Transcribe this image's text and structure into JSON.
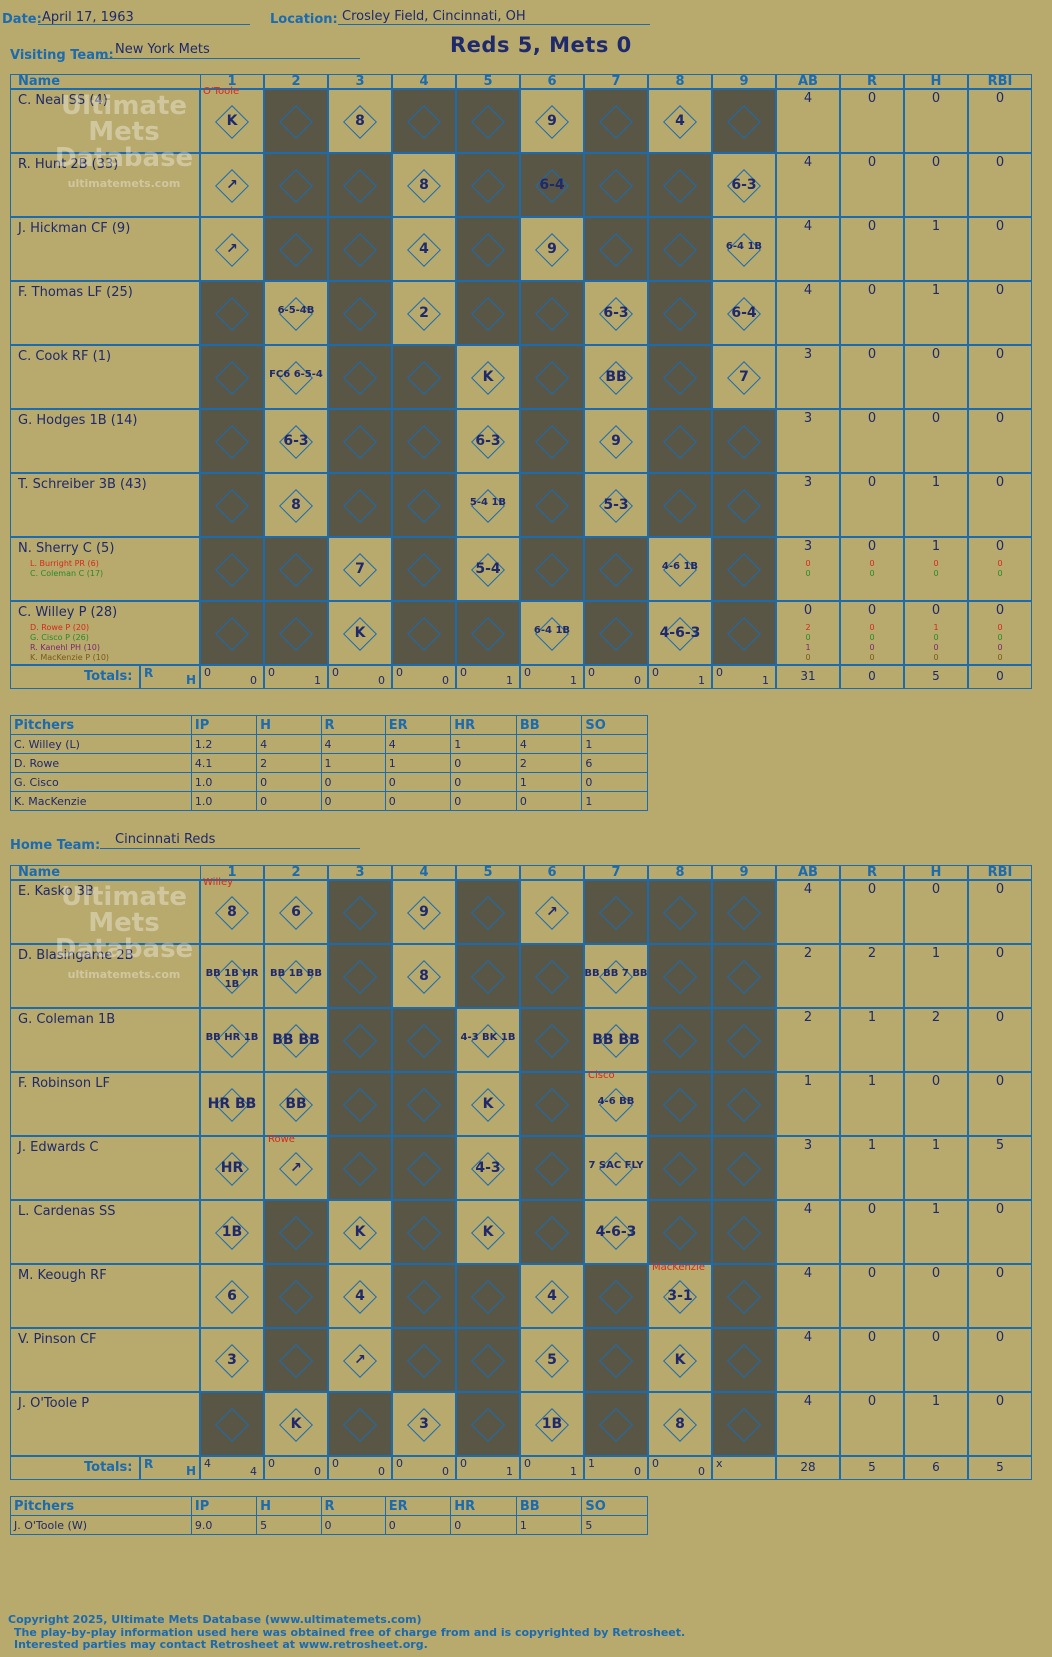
{
  "header": {
    "date_label": "Date:",
    "date": "April 17, 1963",
    "location_label": "Location:",
    "location": "Crosley Field, Cincinnati, OH",
    "visiting_label": "Visiting Team:",
    "visiting_team": "New York Mets",
    "home_label": "Home Team:",
    "home_team": "Cincinnati Reds",
    "result": "Reds 5, Mets 0"
  },
  "watermark": {
    "line1": "Ultimate",
    "line2": "Mets",
    "line3": "Database",
    "url": "ultimatemets.com"
  },
  "columns": {
    "name": "Name",
    "innings": [
      "1",
      "2",
      "3",
      "4",
      "5",
      "6",
      "7",
      "8",
      "9"
    ],
    "stats": [
      "AB",
      "R",
      "H",
      "RBI"
    ]
  },
  "visitor": {
    "players": [
      {
        "name": "C. Neal SS (4)",
        "stats": [
          "4",
          "0",
          "0",
          "0"
        ],
        "subs": []
      },
      {
        "name": "R. Hunt 2B (33)",
        "stats": [
          "4",
          "0",
          "0",
          "0"
        ],
        "subs": []
      },
      {
        "name": "J. Hickman CF (9)",
        "stats": [
          "4",
          "0",
          "1",
          "0"
        ],
        "subs": []
      },
      {
        "name": "F. Thomas LF (25)",
        "stats": [
          "4",
          "0",
          "1",
          "0"
        ],
        "subs": []
      },
      {
        "name": "C. Cook RF (1)",
        "stats": [
          "3",
          "0",
          "0",
          "0"
        ],
        "subs": []
      },
      {
        "name": "G. Hodges 1B (14)",
        "stats": [
          "3",
          "0",
          "0",
          "0"
        ],
        "subs": []
      },
      {
        "name": "T. Schreiber 3B (43)",
        "stats": [
          "3",
          "0",
          "1",
          "0"
        ],
        "subs": []
      },
      {
        "name": "N. Sherry C (5)",
        "stats": [
          "3",
          "0",
          "1",
          "0"
        ],
        "subs": [
          {
            "name": "L. Burright PR (6)",
            "stats": [
              "0",
              "0",
              "0",
              "0"
            ],
            "color": "#d42a1a"
          },
          {
            "name": "C. Coleman C (17)",
            "stats": [
              "0",
              "0",
              "0",
              "0"
            ],
            "color": "#2a8a2a"
          }
        ]
      },
      {
        "name": "C. Willey P (28)",
        "stats": [
          "0",
          "0",
          "0",
          "0"
        ],
        "subs": [
          {
            "name": "D. Rowe P (20)",
            "stats": [
              "2",
              "0",
              "1",
              "0"
            ],
            "color": "#d42a1a"
          },
          {
            "name": "G. Cisco P (26)",
            "stats": [
              "0",
              "0",
              "0",
              "0"
            ],
            "color": "#2a8a2a"
          },
          {
            "name": "R. Kanehl PH (10)",
            "stats": [
              "1",
              "0",
              "0",
              "0"
            ],
            "color": "#7a2a6a"
          },
          {
            "name": "K. MacKenzie P (10)",
            "stats": [
              "0",
              "0",
              "0",
              "0"
            ],
            "color": "#7a5a1a"
          }
        ]
      }
    ],
    "totals_label": "Totals:",
    "totals_r": "R",
    "totals_h": "H",
    "inning_totals": [
      [
        "0",
        "0"
      ],
      [
        "0",
        "1"
      ],
      [
        "0",
        "0"
      ],
      [
        "0",
        "0"
      ],
      [
        "0",
        "1"
      ],
      [
        "0",
        "1"
      ],
      [
        "0",
        "0"
      ],
      [
        "0",
        "1"
      ],
      [
        "0",
        "1"
      ]
    ],
    "totals": [
      "31",
      "0",
      "5",
      "0"
    ]
  },
  "visitor_pitchers": {
    "headers": [
      "Pitchers",
      "IP",
      "H",
      "R",
      "ER",
      "HR",
      "BB",
      "SO"
    ],
    "rows": [
      [
        "C. Willey (L)",
        "1.2",
        "4",
        "4",
        "4",
        "1",
        "4",
        "1"
      ],
      [
        "D. Rowe",
        "4.1",
        "2",
        "1",
        "1",
        "0",
        "2",
        "6"
      ],
      [
        "G. Cisco",
        "1.0",
        "0",
        "0",
        "0",
        "0",
        "1",
        "0"
      ],
      [
        "K. MacKenzie",
        "1.0",
        "0",
        "0",
        "0",
        "0",
        "0",
        "1"
      ]
    ]
  },
  "home": {
    "players": [
      {
        "name": "E. Kasko 3B",
        "stats": [
          "4",
          "0",
          "0",
          "0"
        ]
      },
      {
        "name": "D. Blasingame 2B",
        "stats": [
          "2",
          "2",
          "1",
          "0"
        ]
      },
      {
        "name": "G. Coleman 1B",
        "stats": [
          "2",
          "1",
          "2",
          "0"
        ]
      },
      {
        "name": "F. Robinson LF",
        "stats": [
          "1",
          "1",
          "0",
          "0"
        ]
      },
      {
        "name": "J. Edwards C",
        "stats": [
          "3",
          "1",
          "1",
          "5"
        ]
      },
      {
        "name": "L. Cardenas SS",
        "stats": [
          "4",
          "0",
          "1",
          "0"
        ]
      },
      {
        "name": "M. Keough RF",
        "stats": [
          "4",
          "0",
          "0",
          "0"
        ]
      },
      {
        "name": "V. Pinson CF",
        "stats": [
          "4",
          "0",
          "0",
          "0"
        ]
      },
      {
        "name": "J. O'Toole P",
        "stats": [
          "4",
          "0",
          "1",
          "0"
        ]
      }
    ],
    "totals_label": "Totals:",
    "totals_r": "R",
    "totals_h": "H",
    "inning_totals": [
      [
        "4",
        "4"
      ],
      [
        "0",
        "0"
      ],
      [
        "0",
        "0"
      ],
      [
        "0",
        "0"
      ],
      [
        "0",
        "1"
      ],
      [
        "0",
        "1"
      ],
      [
        "1",
        "0"
      ],
      [
        "0",
        "0"
      ],
      [
        "x",
        ""
      ]
    ],
    "totals": [
      "28",
      "5",
      "6",
      "5"
    ]
  },
  "home_pitchers": {
    "headers": [
      "Pitchers",
      "IP",
      "H",
      "R",
      "ER",
      "HR",
      "BB",
      "SO"
    ],
    "rows": [
      [
        "J. O'Toole (W)",
        "9.0",
        "5",
        "0",
        "0",
        "0",
        "1",
        "5"
      ]
    ]
  },
  "plays_visitor": [
    [
      "K",
      "",
      "8",
      "",
      "",
      "9",
      "",
      "4",
      ""
    ],
    [
      "↗",
      "",
      "",
      "8",
      "",
      "6-4",
      "",
      "",
      "6-3"
    ],
    [
      "↗",
      "",
      "",
      "4",
      "",
      "9",
      "",
      "",
      "6-4 1B"
    ],
    [
      "",
      "6-5-4B",
      "",
      "2",
      "",
      "",
      "6-3",
      "",
      "6-4"
    ],
    [
      "",
      "FC6 6-5-4",
      "",
      "",
      "K",
      "",
      "BB",
      "",
      "7"
    ],
    [
      "",
      "6-3",
      "",
      "",
      "6-3",
      "",
      "9",
      "",
      ""
    ],
    [
      "",
      "8",
      "",
      "",
      "5-4 1B",
      "",
      "5-3",
      "",
      ""
    ],
    [
      "",
      "",
      "7",
      "",
      "5-4",
      "",
      "",
      "4-6 1B",
      ""
    ],
    [
      "",
      "",
      "K",
      "",
      "",
      "6-4 1B",
      "",
      "4-6-3",
      ""
    ]
  ],
  "plays_visitor_notes": {
    "relief1": "O'Toole"
  },
  "plays_home": [
    [
      "8",
      "6",
      "",
      "9",
      "",
      "↗",
      "",
      "",
      ""
    ],
    [
      "BB 1B HR 1B",
      "BB 1B BB",
      "",
      "8",
      "",
      "",
      "BB BB 7 BB",
      "",
      ""
    ],
    [
      "BB HR 1B",
      "BB BB",
      "",
      "",
      "4-3 BK 1B",
      "",
      "BB BB",
      "",
      ""
    ],
    [
      "HR BB",
      "BB",
      "",
      "",
      "K",
      "",
      "4-6 BB",
      "",
      ""
    ],
    [
      "HR",
      "↗",
      "",
      "",
      "4-3",
      "",
      "7 SAC FLY",
      "",
      ""
    ],
    [
      "1B",
      "",
      "K",
      "",
      "K",
      "",
      "4-6-3",
      "",
      ""
    ],
    [
      "6",
      "",
      "4",
      "",
      "",
      "4",
      "",
      "3-1",
      ""
    ],
    [
      "3",
      "",
      "↗",
      "",
      "",
      "5",
      "",
      "K",
      ""
    ],
    [
      "",
      "K",
      "",
      "3",
      "",
      "1B",
      "",
      "8",
      ""
    ]
  ],
  "plays_home_notes": {
    "willey": "Willey",
    "rowe": "Rowe",
    "cisco": "Cisco",
    "mackenzie": "MacKenzie"
  },
  "footer": {
    "line1": "Copyright 2025, Ultimate Mets Database (www.ultimatemets.com)",
    "line2": "The play-by-play information used here was obtained free of charge from and is copyrighted by Retrosheet.",
    "line3": "Interested parties may contact Retrosheet at www.retrosheet.org."
  }
}
